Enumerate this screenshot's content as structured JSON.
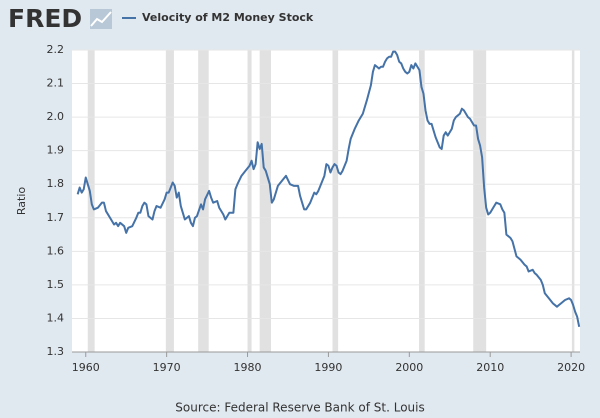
{
  "logo": "FRED",
  "source": "Source: Federal Reserve Bank of St. Louis",
  "chart_data": {
    "type": "line",
    "ylabel": "Ratio",
    "grid": true,
    "xlim": [
      1958.3,
      2021.1
    ],
    "ylim": [
      1.3,
      2.2
    ],
    "xticks": [
      1960,
      1970,
      1980,
      1990,
      2000,
      2010,
      2020
    ],
    "yticks": [
      1.3,
      1.4,
      1.5,
      1.6,
      1.7,
      1.8,
      1.9,
      {
        "value": 2,
        "label": "2.0"
      },
      2.1,
      2.2
    ],
    "recessions": [
      [
        1960.25,
        1961.1
      ],
      [
        1969.9,
        1970.9
      ],
      [
        1973.9,
        1975.2
      ],
      [
        1980.0,
        1980.5
      ],
      [
        1981.5,
        1982.9
      ],
      [
        1990.5,
        1991.2
      ],
      [
        2001.2,
        2001.9
      ],
      [
        2007.9,
        2009.5
      ],
      [
        2020.1,
        2020.4
      ]
    ],
    "x": [
      1959,
      1959.25,
      1959.5,
      1959.75,
      1960,
      1960.25,
      1960.5,
      1960.75,
      1961,
      1961.5,
      1962,
      1962.25,
      1962.5,
      1963,
      1963.5,
      1963.75,
      1964,
      1964.25,
      1964.75,
      1965,
      1965.25,
      1965.75,
      1966.25,
      1966.5,
      1966.75,
      1967,
      1967.25,
      1967.5,
      1967.75,
      1968.25,
      1968.5,
      1968.75,
      1969.25,
      1969.75,
      1970,
      1970.25,
      1970.5,
      1970.75,
      1971,
      1971.25,
      1971.5,
      1971.75,
      1972.25,
      1972.75,
      1973,
      1973.25,
      1973.5,
      1973.75,
      1974.25,
      1974.5,
      1974.75,
      1975.25,
      1975.5,
      1975.75,
      1976.25,
      1976.5,
      1977,
      1977.25,
      1977.5,
      1977.75,
      1978.25,
      1978.5,
      1978.75,
      1979.25,
      1979.75,
      1980.25,
      1980.5,
      1980.75,
      1981,
      1981.25,
      1981.5,
      1981.75,
      1982,
      1982.25,
      1982.75,
      1983,
      1983.25,
      1983.75,
      1984.25,
      1984.75,
      1985.25,
      1985.75,
      1986.25,
      1986.5,
      1986.75,
      1987,
      1987.25,
      1987.75,
      1988.25,
      1988.5,
      1988.75,
      1989.5,
      1989.75,
      1990,
      1990.25,
      1990.5,
      1990.75,
      1991,
      1991.25,
      1991.5,
      1991.75,
      1992.25,
      1992.5,
      1992.75,
      1993.25,
      1993.75,
      1994.25,
      1994.75,
      1995.25,
      1995.5,
      1995.75,
      1996,
      1996.25,
      1996.5,
      1996.75,
      1997,
      1997.25,
      1997.5,
      1997.75,
      1998,
      1998.25,
      1998.5,
      1998.75,
      1999,
      1999.25,
      1999.5,
      1999.75,
      2000,
      2000.25,
      2000.5,
      2000.75,
      2001,
      2001.25,
      2001.5,
      2001.75,
      2002,
      2002.25,
      2002.5,
      2002.75,
      2003,
      2003.25,
      2003.5,
      2003.75,
      2004,
      2004.25,
      2004.5,
      2004.75,
      2005,
      2005.25,
      2005.5,
      2005.75,
      2006,
      2006.25,
      2006.5,
      2006.75,
      2007,
      2007.25,
      2007.5,
      2007.75,
      2008,
      2008.25,
      2008.5,
      2008.75,
      2009,
      2009.25,
      2009.5,
      2009.75,
      2010,
      2010.5,
      2010.75,
      2011.25,
      2011.5,
      2011.75,
      2012,
      2012.5,
      2012.75,
      2013.25,
      2013.5,
      2013.75,
      2014.25,
      2014.5,
      2014.75,
      2015.25,
      2015.5,
      2015.75,
      2016.25,
      2016.5,
      2016.75,
      2017.25,
      2017.75,
      2018.25,
      2018.5,
      2018.75,
      2019.25,
      2019.75,
      2020,
      2020.25,
      2020.5,
      2020.75,
      2021
    ],
    "series": [
      {
        "name": "Velocity of M2 Money Stock",
        "color": "#4572a7",
        "values": [
          1.77,
          1.79,
          1.775,
          1.785,
          1.82,
          1.8,
          1.78,
          1.74,
          1.725,
          1.73,
          1.745,
          1.745,
          1.72,
          1.7,
          1.68,
          1.685,
          1.675,
          1.685,
          1.675,
          1.655,
          1.67,
          1.675,
          1.7,
          1.715,
          1.715,
          1.735,
          1.745,
          1.74,
          1.705,
          1.695,
          1.72,
          1.735,
          1.73,
          1.755,
          1.775,
          1.775,
          1.79,
          1.805,
          1.795,
          1.76,
          1.775,
          1.735,
          1.695,
          1.705,
          1.685,
          1.675,
          1.7,
          1.705,
          1.74,
          1.725,
          1.755,
          1.78,
          1.76,
          1.745,
          1.75,
          1.73,
          1.71,
          1.695,
          1.705,
          1.715,
          1.715,
          1.785,
          1.8,
          1.825,
          1.84,
          1.855,
          1.87,
          1.845,
          1.86,
          1.925,
          1.905,
          1.92,
          1.85,
          1.84,
          1.8,
          1.745,
          1.755,
          1.795,
          1.81,
          1.825,
          1.8,
          1.795,
          1.795,
          1.765,
          1.745,
          1.725,
          1.725,
          1.745,
          1.775,
          1.77,
          1.78,
          1.825,
          1.86,
          1.855,
          1.835,
          1.85,
          1.86,
          1.855,
          1.835,
          1.83,
          1.84,
          1.87,
          1.905,
          1.935,
          1.965,
          1.99,
          2.01,
          2.05,
          2.095,
          2.135,
          2.155,
          2.15,
          2.145,
          2.15,
          2.15,
          2.165,
          2.175,
          2.18,
          2.18,
          2.195,
          2.195,
          2.185,
          2.165,
          2.16,
          2.145,
          2.135,
          2.13,
          2.135,
          2.155,
          2.145,
          2.16,
          2.15,
          2.14,
          2.09,
          2.07,
          2.02,
          1.99,
          1.98,
          1.98,
          1.96,
          1.94,
          1.925,
          1.91,
          1.905,
          1.945,
          1.955,
          1.945,
          1.955,
          1.965,
          1.99,
          2.0,
          2.005,
          2.01,
          2.025,
          2.02,
          2.01,
          2.0,
          1.995,
          1.985,
          1.975,
          1.975,
          1.935,
          1.915,
          1.88,
          1.79,
          1.73,
          1.71,
          1.715,
          1.735,
          1.745,
          1.74,
          1.725,
          1.715,
          1.65,
          1.64,
          1.63,
          1.585,
          1.58,
          1.575,
          1.56,
          1.555,
          1.54,
          1.545,
          1.535,
          1.53,
          1.515,
          1.5,
          1.475,
          1.46,
          1.445,
          1.435,
          1.44,
          1.445,
          1.455,
          1.46,
          1.455,
          1.44,
          1.42,
          1.405,
          1.375
        ]
      }
    ]
  }
}
